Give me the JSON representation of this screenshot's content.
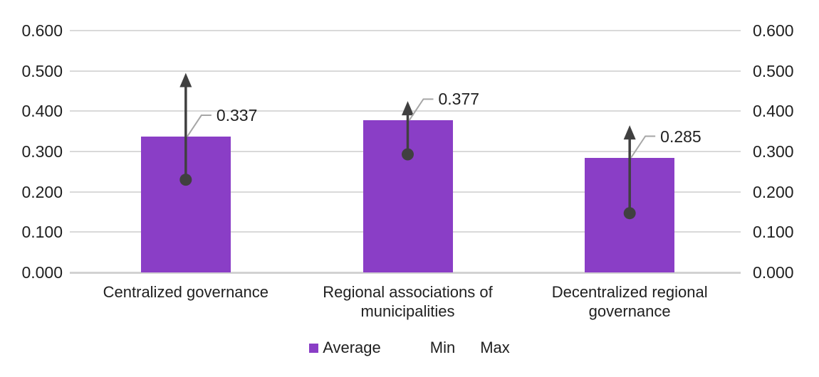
{
  "chart_data": {
    "type": "bar",
    "title": "",
    "xlabel": "",
    "ylabel": "",
    "categories": [
      "Centralized governance",
      "Regional associations of municipalities",
      "Decentralized regional governance"
    ],
    "series": [
      {
        "name": "Average",
        "values": [
          0.337,
          0.377,
          0.285
        ]
      },
      {
        "name": "Min",
        "values": [
          0.23,
          0.293,
          0.147
        ]
      },
      {
        "name": "Max",
        "values": [
          0.495,
          0.425,
          0.365
        ]
      }
    ],
    "data_labels": [
      "0.337",
      "0.377",
      "0.285"
    ],
    "ylim": [
      0,
      0.6
    ],
    "ytick_values": [
      0,
      0.1,
      0.2,
      0.3,
      0.4,
      0.5,
      0.6
    ],
    "ytick_labels": [
      "0.000",
      "0.100",
      "0.200",
      "0.300",
      "0.400",
      "0.500",
      "0.600"
    ],
    "dual_axis": true,
    "grid": true,
    "legend_position": "bottom"
  },
  "legend": {
    "items": [
      {
        "label": "Average",
        "marker": "square-icon",
        "color": "#8a3ec6"
      },
      {
        "label": "Min",
        "marker": "none"
      },
      {
        "label": "Max",
        "marker": "none"
      }
    ]
  },
  "colors": {
    "bar": "#8a3ec6",
    "error_bar": "#404040",
    "gridline": "#d9d9d9",
    "axis_line": "#d2d2d2",
    "leader_line": "#a6a6a6",
    "text": "#1f1f1f"
  }
}
